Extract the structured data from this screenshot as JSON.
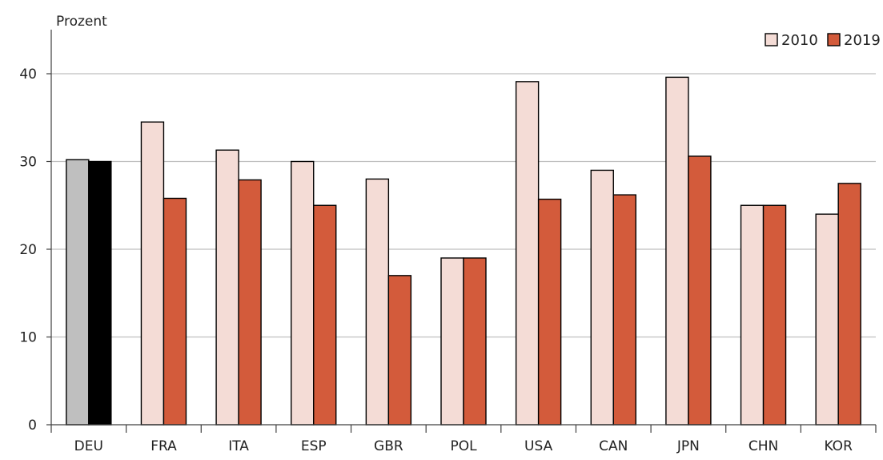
{
  "chart_data": {
    "type": "bar",
    "ylabel": "Prozent",
    "ylim": [
      0,
      45
    ],
    "yticks": [
      0,
      10,
      20,
      30,
      40
    ],
    "grid": true,
    "legend": "top-right",
    "categories": [
      "DEU",
      "FRA",
      "ITA",
      "ESP",
      "GBR",
      "POL",
      "USA",
      "CAN",
      "JPN",
      "CHN",
      "KOR"
    ],
    "series": [
      {
        "name": "2010",
        "color": "#f4dcd6",
        "highlight_color": "#bfbfbf",
        "values": [
          30.2,
          34.5,
          31.3,
          30.0,
          28.0,
          19.0,
          39.1,
          29.0,
          39.6,
          25.0,
          24.0
        ]
      },
      {
        "name": "2019",
        "color": "#d35b3b",
        "highlight_color": "#000000",
        "values": [
          30.0,
          25.8,
          27.9,
          25.0,
          17.0,
          19.0,
          25.7,
          26.2,
          30.6,
          25.0,
          27.5
        ]
      }
    ],
    "highlight_category": "DEU"
  }
}
